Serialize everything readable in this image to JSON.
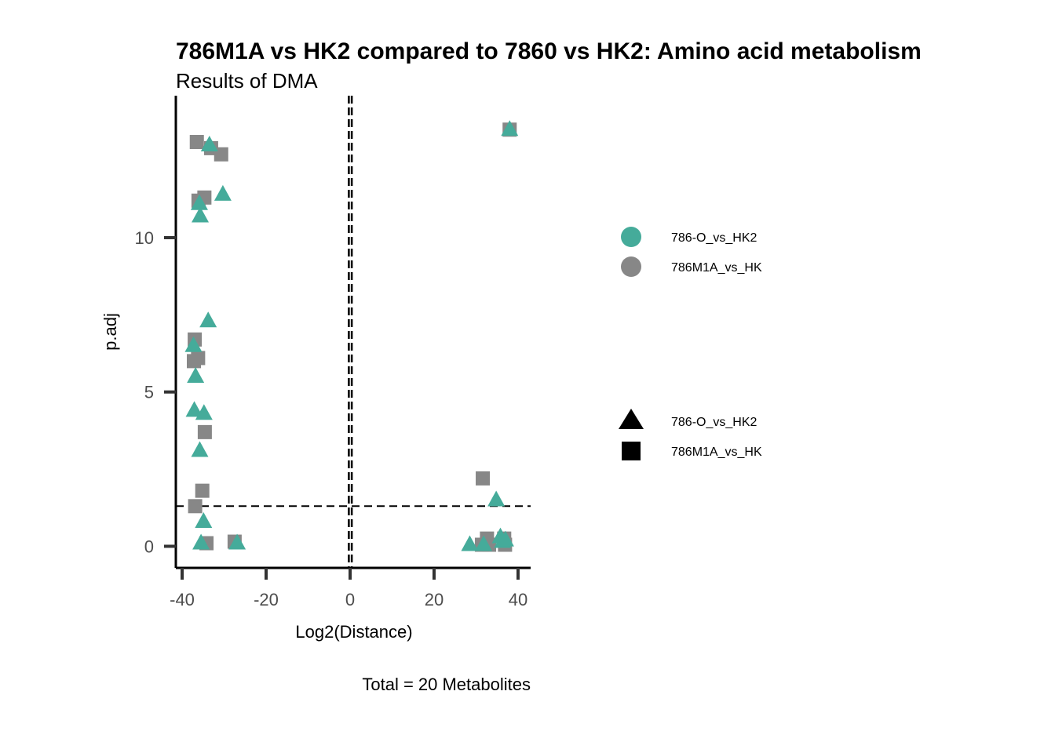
{
  "chart_data": {
    "type": "scatter",
    "title": "786M1A vs HK2 compared to 7860 vs HK2: Amino acid metabolism",
    "subtitle": "Results of DMA",
    "xlabel": "Log2(Distance)",
    "ylabel": "p.adj",
    "caption": "Total = 20 Metabolites",
    "xlim": [
      -41.5,
      43
    ],
    "ylim": [
      -0.7,
      14.6
    ],
    "x_ticks": [
      -40,
      -20,
      0,
      20,
      40
    ],
    "y_ticks": [
      0,
      5,
      10
    ],
    "x_tick_labels": [
      "-40",
      "-20",
      "0",
      "20",
      "40"
    ],
    "y_tick_labels": [
      "0",
      "5",
      "10"
    ],
    "grid": false,
    "reference_lines": {
      "vertical": [
        -0.3,
        0.4
      ],
      "horizontal": [
        1.3
      ]
    },
    "legend": {
      "placement": "right",
      "color_entries": [
        {
          "label": "786-O_vs_HK2",
          "color": "#45ab9a"
        },
        {
          "label": "786M1A_vs_HK",
          "color": "#878787"
        }
      ],
      "shape_entries": [
        {
          "label": "786-O_vs_HK2",
          "shape": "triangle"
        },
        {
          "label": "786M1A_vs_HK",
          "shape": "square"
        }
      ]
    },
    "series": [
      {
        "name": "786M1A_vs_HK",
        "shape": "square",
        "color": "#878787",
        "points": [
          {
            "x": -36.5,
            "y": 13.1
          },
          {
            "x": -33.1,
            "y": 12.9
          },
          {
            "x": -30.7,
            "y": 12.7
          },
          {
            "x": -34.7,
            "y": 11.3
          },
          {
            "x": -36.1,
            "y": 11.2
          },
          {
            "x": -37.0,
            "y": 6.7
          },
          {
            "x": -36.2,
            "y": 6.1
          },
          {
            "x": -37.2,
            "y": 6.0
          },
          {
            "x": -34.6,
            "y": 3.7
          },
          {
            "x": -35.2,
            "y": 1.8
          },
          {
            "x": -36.9,
            "y": 1.3
          },
          {
            "x": -34.2,
            "y": 0.1
          },
          {
            "x": -27.5,
            "y": 0.15
          },
          {
            "x": 38.0,
            "y": 13.5
          },
          {
            "x": 31.6,
            "y": 2.2
          },
          {
            "x": 32.6,
            "y": 0.25
          },
          {
            "x": 36.7,
            "y": 0.25
          },
          {
            "x": 31.4,
            "y": 0.05
          },
          {
            "x": 33.1,
            "y": 0.05
          },
          {
            "x": 36.9,
            "y": 0.05
          }
        ]
      },
      {
        "name": "786-O_vs_HK2",
        "shape": "triangle",
        "color": "#45ab9a",
        "points": [
          {
            "x": 38.0,
            "y": 13.5
          },
          {
            "x": -33.5,
            "y": 13.0
          },
          {
            "x": -30.3,
            "y": 11.4
          },
          {
            "x": -35.9,
            "y": 11.1
          },
          {
            "x": -35.7,
            "y": 10.7
          },
          {
            "x": -33.8,
            "y": 7.3
          },
          {
            "x": -37.3,
            "y": 6.5
          },
          {
            "x": -36.8,
            "y": 5.5
          },
          {
            "x": -37.1,
            "y": 4.4
          },
          {
            "x": -34.8,
            "y": 4.3
          },
          {
            "x": -35.8,
            "y": 3.1
          },
          {
            "x": 34.8,
            "y": 1.5
          },
          {
            "x": -34.9,
            "y": 0.8
          },
          {
            "x": -35.5,
            "y": 0.1
          },
          {
            "x": -26.9,
            "y": 0.1
          },
          {
            "x": 28.5,
            "y": 0.05
          },
          {
            "x": 31.8,
            "y": 0.05
          },
          {
            "x": 35.8,
            "y": 0.3
          },
          {
            "x": 36.3,
            "y": 0.15
          },
          {
            "x": 37.0,
            "y": 0.2
          }
        ]
      }
    ]
  }
}
